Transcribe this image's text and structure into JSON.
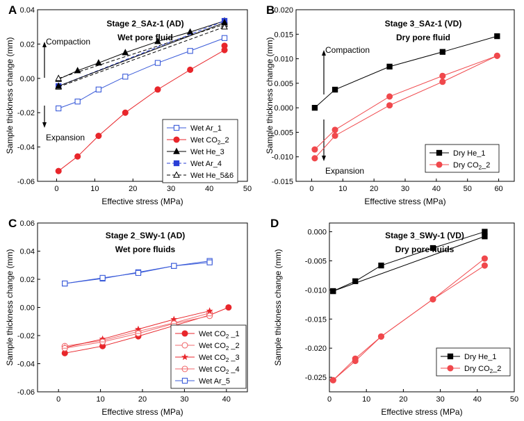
{
  "chart_data": [
    {
      "type": "line",
      "panel": "A",
      "title": "Stage 2_SAz-1 (AD)",
      "subtitle": "Wet pore fluid",
      "xlabel": "Effective stress (MPa)",
      "ylabel": "Sample thickness change (mm)",
      "xlim": [
        -5,
        50
      ],
      "ylim": [
        -0.06,
        0.04
      ],
      "xticks": [
        0,
        10,
        20,
        30,
        40,
        50
      ],
      "yticks": [
        -0.06,
        -0.04,
        -0.02,
        0.0,
        0.02,
        0.04
      ],
      "yticklabels": [
        "-0.06",
        "-0.04",
        "-0.02",
        "0.00",
        "0.02",
        "0.04"
      ],
      "annotations": {
        "up": "Compaction",
        "down": "Expansion"
      },
      "legend_position": "bottom-right",
      "series": [
        {
          "name": "Wet Ar_1",
          "name_sub": "",
          "color": "#3a5bd9",
          "marker": "square-open",
          "dash": "solid",
          "x": [
            0.5,
            5.5,
            11,
            18,
            26.5,
            35,
            44
          ],
          "y": [
            -0.0175,
            -0.0135,
            -0.0065,
            0.001,
            0.009,
            0.016,
            0.0235
          ]
        },
        {
          "name": "Wet CO",
          "name_sub": "2",
          "name_suffix": "_2",
          "color": "#e8262b",
          "marker": "circle-filled",
          "dash": "solid",
          "x": [
            0.5,
            5.5,
            11,
            18,
            26.5,
            35,
            44
          ],
          "y": [
            -0.054,
            -0.0455,
            -0.0335,
            -0.02,
            -0.0065,
            0.005,
            0.0165
          ]
        },
        {
          "name": "Wet CO",
          "name_sub": "2",
          "name_suffix": "_2",
          "color": "#e8262b",
          "marker": "circle-filled",
          "dash": "solid",
          "legend": false,
          "x": [
            44
          ],
          "y": [
            0.019
          ]
        },
        {
          "name": "Wet He_3",
          "name_sub": "",
          "color": "#000000",
          "marker": "triangle-filled",
          "dash": "solid",
          "x": [
            0.5,
            5.5,
            11,
            18,
            26.5,
            35,
            44
          ],
          "y": [
            -0.0005,
            0.0045,
            0.009,
            0.015,
            0.0215,
            0.027,
            0.0335
          ]
        },
        {
          "name": "Wet Ar_4",
          "name_sub": "",
          "color": "#2a3fd6",
          "marker": "square-filled",
          "dash": "dash",
          "x": [
            0.5,
            44
          ],
          "y": [
            -0.0045,
            0.0335
          ]
        },
        {
          "name": "Wet He_5&6",
          "name_sub": "",
          "color": "#000000",
          "marker": "triangle-open",
          "dash": "dash",
          "x": [
            0.5,
            44
          ],
          "y": [
            0.0,
            0.0315
          ]
        },
        {
          "name": "Wet He_5&6",
          "name_sub": "",
          "color": "#000000",
          "marker": "triangle-open",
          "dash": "dash",
          "legend": false,
          "x": [
            0.5,
            44
          ],
          "y": [
            -0.005,
            0.03
          ]
        },
        {
          "name": "Wet He_3",
          "name_sub": "",
          "color": "#000000",
          "marker": "triangle-filled",
          "dash": "solid",
          "legend": false,
          "x": [
            0.5,
            44
          ],
          "y": [
            -0.0045,
            0.0325
          ]
        }
      ]
    },
    {
      "type": "line",
      "panel": "B",
      "title": "Stage 3_SAz-1 (VD)",
      "subtitle": "Dry pore fluid",
      "xlabel": "Effective stress (MPa)",
      "ylabel": "Sample thickness change (mm)",
      "xlim": [
        -5,
        65
      ],
      "ylim": [
        -0.015,
        0.02
      ],
      "xticks": [
        0,
        10,
        20,
        30,
        40,
        50,
        60
      ],
      "yticks": [
        -0.015,
        -0.01,
        -0.005,
        0.0,
        0.005,
        0.01,
        0.015,
        0.02
      ],
      "yticklabels": [
        "-0.015",
        "-0.010",
        "-0.005",
        "0.000",
        "0.005",
        "0.010",
        "0.015",
        "0.020"
      ],
      "annotations": {
        "up": "Compaction",
        "down": "Expansion"
      },
      "legend_position": "bottom-right",
      "series": [
        {
          "name": "Dry He_1",
          "name_sub": "",
          "color": "#000000",
          "marker": "square-filled",
          "dash": "solid",
          "x": [
            1,
            7.5,
            25,
            42,
            59.5
          ],
          "y": [
            0.0,
            0.0037,
            0.0084,
            0.0114,
            0.0146
          ]
        },
        {
          "name": "Dry CO",
          "name_sub": "2",
          "name_suffix": "_2",
          "color": "#f0484c",
          "marker": "circle-filled",
          "dash": "solid",
          "x": [
            1,
            7.5,
            25,
            42,
            59.5
          ],
          "y": [
            -0.0085,
            -0.0045,
            0.0023,
            0.0065,
            0.0106
          ]
        },
        {
          "name": "Dry CO",
          "name_sub": "2",
          "name_suffix": "_2",
          "color": "#f0484c",
          "marker": "circle-filled",
          "dash": "solid",
          "legend": false,
          "x": [
            1,
            7.5,
            25,
            42,
            59.5
          ],
          "y": [
            -0.0103,
            -0.0057,
            0.0005,
            0.0053,
            0.0106
          ]
        }
      ]
    },
    {
      "type": "line",
      "panel": "C",
      "title": "Stage 2_SWy-1 (AD)",
      "subtitle": "Wet pore fluids",
      "xlabel": "Effective stress (MPa)",
      "ylabel": "Sample thickness change (mm)",
      "xlim": [
        -5,
        45
      ],
      "ylim": [
        -0.06,
        0.06
      ],
      "xticks": [
        0,
        10,
        20,
        30,
        40
      ],
      "yticks": [
        -0.06,
        -0.04,
        -0.02,
        0.0,
        0.02,
        0.04,
        0.06
      ],
      "yticklabels": [
        "-0.06",
        "-0.04",
        "-0.02",
        "0.00",
        "0.02",
        "0.04",
        "0.06"
      ],
      "legend_position": "bottom-right",
      "series": [
        {
          "name": "Wet CO",
          "name_sub": "2",
          "name_suffix": " _1",
          "color": "#e8262b",
          "marker": "circle-filled",
          "dash": "solid",
          "x": [
            1.5,
            10.5,
            19,
            27.5,
            36,
            40.5
          ],
          "y": [
            -0.0325,
            -0.0275,
            -0.0205,
            -0.013,
            -0.0055,
            0.0
          ]
        },
        {
          "name": "Wet CO",
          "name_sub": "2",
          "name_suffix": " _2",
          "color": "#f06a6d",
          "marker": "circle-open",
          "dash": "solid",
          "x": [
            1.5,
            10.5,
            19,
            27.5,
            36
          ],
          "y": [
            -0.0275,
            -0.0235,
            -0.017,
            -0.011,
            -0.004
          ]
        },
        {
          "name": "Wet CO",
          "name_sub": "2",
          "name_suffix": " _3",
          "color": "#e8262b",
          "marker": "star",
          "dash": "solid",
          "x": [
            1.5,
            10.5,
            19,
            27.5,
            36
          ],
          "y": [
            -0.0285,
            -0.0225,
            -0.0155,
            -0.0085,
            -0.0025
          ]
        },
        {
          "name": "Wet CO",
          "name_sub": "2",
          "name_suffix": " _4",
          "color": "#f06a6d",
          "marker": "circle-half",
          "dash": "solid",
          "x": [
            1.5,
            10.5,
            19,
            27.5,
            36
          ],
          "y": [
            -0.029,
            -0.0245,
            -0.0185,
            -0.0115,
            -0.006
          ]
        },
        {
          "name": "Wet Ar_5",
          "name_sub": "",
          "color": "#3a5bd9",
          "marker": "square-open",
          "dash": "solid",
          "x": [
            1.5,
            10.5,
            19,
            27.5,
            36
          ],
          "y": [
            0.017,
            0.0205,
            0.025,
            0.0295,
            0.033
          ]
        },
        {
          "name": "Wet Ar_5",
          "name_sub": "",
          "color": "#3a5bd9",
          "marker": "square-open",
          "dash": "solid",
          "legend": false,
          "x": [
            1.5,
            10.5,
            19,
            27.5,
            36
          ],
          "y": [
            0.017,
            0.021,
            0.0245,
            0.0295,
            0.032
          ]
        }
      ]
    },
    {
      "type": "line",
      "panel": "D",
      "title": "Stage 3_SWy-1 (VD)",
      "subtitle": "Dry pore fluids",
      "xlabel": "Effective stress (MPa)",
      "ylabel": "Sample thickness change (mm)",
      "xlim": [
        0,
        50
      ],
      "ylim": [
        -0.0275,
        0.0015
      ],
      "xticks": [
        0,
        10,
        20,
        30,
        40,
        50
      ],
      "yticks": [
        -0.025,
        -0.02,
        -0.015,
        -0.01,
        -0.005,
        0.0
      ],
      "yticklabels": [
        "-0.025",
        "-0.020",
        "-0.015",
        "-0.010",
        "-0.005",
        "0.000"
      ],
      "legend_position": "bottom-right",
      "series": [
        {
          "name": "Dry He_1",
          "name_sub": "",
          "color": "#000000",
          "marker": "square-filled",
          "dash": "solid",
          "x": [
            1,
            7,
            14,
            28,
            42
          ],
          "y": [
            -0.0102,
            -0.0085,
            -0.0058,
            -0.0028,
            0.0
          ]
        },
        {
          "name": "Dry He_1",
          "name_sub": "",
          "color": "#000000",
          "marker": "square-filled",
          "dash": "solid",
          "legend": false,
          "x": [
            1,
            42
          ],
          "y": [
            -0.0102,
            -0.0008
          ]
        },
        {
          "name": "Dry CO",
          "name_sub": "2",
          "name_suffix": "_2",
          "color": "#f0484c",
          "marker": "circle-filled",
          "dash": "solid",
          "x": [
            1,
            7,
            14,
            28,
            42
          ],
          "y": [
            -0.0255,
            -0.0218,
            -0.018,
            -0.0116,
            -0.0046
          ]
        },
        {
          "name": "Dry CO",
          "name_sub": "2",
          "name_suffix": "_2",
          "color": "#f0484c",
          "marker": "circle-filled",
          "dash": "solid",
          "legend": false,
          "x": [
            1,
            7,
            14,
            28,
            42
          ],
          "y": [
            -0.0255,
            -0.0222,
            -0.018,
            -0.0116,
            -0.0058
          ]
        }
      ]
    }
  ]
}
